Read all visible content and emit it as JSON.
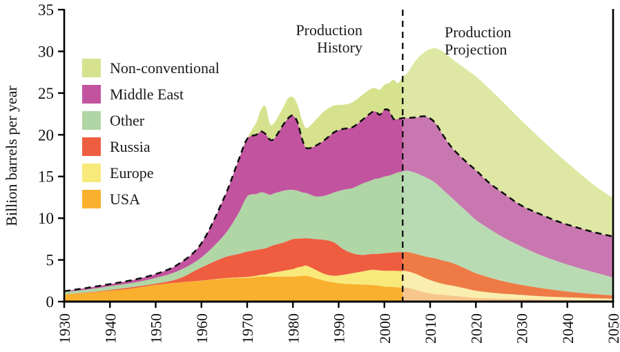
{
  "figure": {
    "y_axis": {
      "title": "Billion barrels per year",
      "ticks": [
        0,
        5,
        10,
        15,
        20,
        25,
        30,
        35
      ],
      "min": 0,
      "max": 35
    },
    "x_axis": {
      "ticks": [
        1930,
        1940,
        1950,
        1960,
        1970,
        1980,
        1990,
        2000,
        2010,
        2020,
        2030,
        2040,
        2050
      ],
      "min": 1930,
      "max": 2050
    },
    "annotations": {
      "history_line1": "Production",
      "history_line2": "History",
      "projection_line1": "Production",
      "projection_line2": "Projection"
    },
    "divider_year": 2004,
    "line_color": "#111111"
  },
  "legend": {
    "items": [
      {
        "label": "Non-conventional",
        "color": "#D6E28E"
      },
      {
        "label": "Middle East",
        "color": "#C2549F"
      },
      {
        "label": "Other",
        "color": "#B0D6A6"
      },
      {
        "label": "Russia",
        "color": "#EF5D41"
      },
      {
        "label": "Europe",
        "color": "#F8E97B"
      },
      {
        "label": "USA",
        "color": "#F9B02E"
      }
    ]
  },
  "chart_data": {
    "type": "area",
    "stacked": true,
    "title": "",
    "xlabel": "",
    "ylabel": "Billion barrels per year",
    "xlim": [
      1930,
      2050
    ],
    "ylim": [
      0,
      35
    ],
    "grid": false,
    "legend_position": "upper-left-inside",
    "divider_year": 2004,
    "dashed_line_meaning": "top of conventional production (Middle East stack top), history and projection",
    "x": [
      1930,
      1935,
      1940,
      1945,
      1950,
      1955,
      1960,
      1965,
      1968,
      1970,
      1972,
      1973,
      1974,
      1975,
      1976,
      1978,
      1979,
      1980,
      1981,
      1982,
      1983,
      1985,
      1987,
      1989,
      1991,
      1993,
      1995,
      1997,
      1998,
      1999,
      2000,
      2001,
      2002,
      2003,
      2004,
      2005,
      2007,
      2009,
      2011,
      2013,
      2015,
      2018,
      2020,
      2023,
      2026,
      2030,
      2034,
      2038,
      2042,
      2046,
      2050
    ],
    "series": [
      {
        "name": "USA",
        "color_history": "#F9B02E",
        "color_projection": "#F6C68C",
        "values": [
          0.85,
          1.05,
          1.3,
          1.6,
          2.0,
          2.3,
          2.5,
          2.75,
          2.82,
          2.85,
          2.95,
          3.0,
          3.0,
          3.0,
          3.0,
          3.0,
          3.0,
          3.0,
          3.05,
          3.08,
          3.1,
          2.8,
          2.5,
          2.3,
          2.15,
          2.1,
          2.05,
          2.0,
          1.95,
          1.9,
          1.8,
          1.78,
          1.75,
          1.72,
          1.7,
          1.68,
          1.4,
          1.1,
          0.9,
          0.8,
          0.7,
          0.55,
          0.45,
          0.4,
          0.35,
          0.3,
          0.26,
          0.22,
          0.19,
          0.17,
          0.15
        ]
      },
      {
        "name": "Europe",
        "color_history": "#F8E97B",
        "color_projection": "#F9EEAE",
        "values": [
          0,
          0,
          0,
          0,
          0,
          0,
          0.02,
          0.05,
          0.08,
          0.1,
          0.15,
          0.2,
          0.25,
          0.4,
          0.5,
          0.7,
          0.8,
          0.9,
          1.05,
          1.12,
          1.2,
          1.0,
          0.8,
          0.8,
          1.05,
          1.3,
          1.55,
          1.8,
          1.85,
          1.85,
          1.9,
          1.92,
          1.95,
          1.96,
          1.96,
          1.96,
          1.9,
          1.7,
          1.5,
          1.3,
          1.2,
          1.0,
          0.85,
          0.7,
          0.6,
          0.5,
          0.39,
          0.33,
          0.28,
          0.23,
          0.2
        ]
      },
      {
        "name": "Russia",
        "color_history": "#EF5D41",
        "color_projection": "#EE7B45",
        "values": [
          0.02,
          0.05,
          0.1,
          0.15,
          0.15,
          0.45,
          1.58,
          2.5,
          2.8,
          3.05,
          3.1,
          3.1,
          3.15,
          3.2,
          3.3,
          3.4,
          3.5,
          3.6,
          3.45,
          3.38,
          3.3,
          3.7,
          4.1,
          4.0,
          3.1,
          2.4,
          2.0,
          1.9,
          1.92,
          1.99,
          2.1,
          2.15,
          2.2,
          2.24,
          2.28,
          2.32,
          2.4,
          2.6,
          2.8,
          2.8,
          2.7,
          2.35,
          2.1,
          1.8,
          1.5,
          1.2,
          1.0,
          0.8,
          0.63,
          0.5,
          0.4
        ]
      },
      {
        "name": "Other",
        "color_history": "#B0D6A6",
        "color_projection": "#B9DBB3",
        "values": [
          0.28,
          0.35,
          0.45,
          0.5,
          0.7,
          0.95,
          1.2,
          2.7,
          4.8,
          6.6,
          6.7,
          6.8,
          6.6,
          6.2,
          6.2,
          6.2,
          6.1,
          5.9,
          5.75,
          5.52,
          5.4,
          5.1,
          5.3,
          6.0,
          7.1,
          7.8,
          8.5,
          8.8,
          8.98,
          9.06,
          9.2,
          9.25,
          9.4,
          9.58,
          9.66,
          9.74,
          9.7,
          9.5,
          9.1,
          8.4,
          7.7,
          6.9,
          6.4,
          5.8,
          5.25,
          4.6,
          3.95,
          3.45,
          3.0,
          2.6,
          2.15
        ]
      },
      {
        "name": "Middle East",
        "color_history": "#C2549F",
        "color_projection": "#C977B1",
        "values": [
          0.1,
          0.2,
          0.25,
          0.35,
          0.45,
          0.8,
          1.7,
          4.5,
          6.3,
          6.9,
          7.1,
          7.3,
          7.1,
          6.6,
          6.6,
          8.0,
          8.6,
          8.9,
          8.2,
          6.4,
          5.4,
          6.1,
          6.7,
          7.2,
          7.3,
          7.3,
          7.6,
          8.1,
          8.1,
          7.6,
          8.0,
          7.8,
          6.6,
          6.4,
          6.4,
          6.3,
          6.7,
          7.3,
          7.2,
          6.5,
          6.0,
          5.9,
          5.95,
          5.5,
          5.3,
          4.9,
          4.9,
          4.8,
          4.8,
          4.8,
          4.9
        ]
      },
      {
        "name": "Non-conventional",
        "color_history": "#D6E28E",
        "color_projection": "#DEE8A4",
        "values": [
          0,
          0,
          0,
          0,
          0,
          0,
          0,
          0,
          0,
          0.1,
          1.5,
          2.6,
          3.3,
          1.9,
          1.9,
          2.1,
          2.4,
          2.2,
          2.1,
          2.3,
          2.4,
          3.1,
          3.5,
          3.2,
          2.9,
          3.0,
          3.0,
          2.9,
          2.8,
          3.0,
          3.0,
          3.3,
          4.7,
          4.3,
          5.0,
          5.4,
          6.9,
          7.8,
          8.9,
          10.1,
          10.7,
          11.1,
          11.25,
          11.3,
          10.9,
          10.2,
          9.1,
          8.0,
          6.8,
          5.6,
          4.6
        ]
      }
    ]
  }
}
